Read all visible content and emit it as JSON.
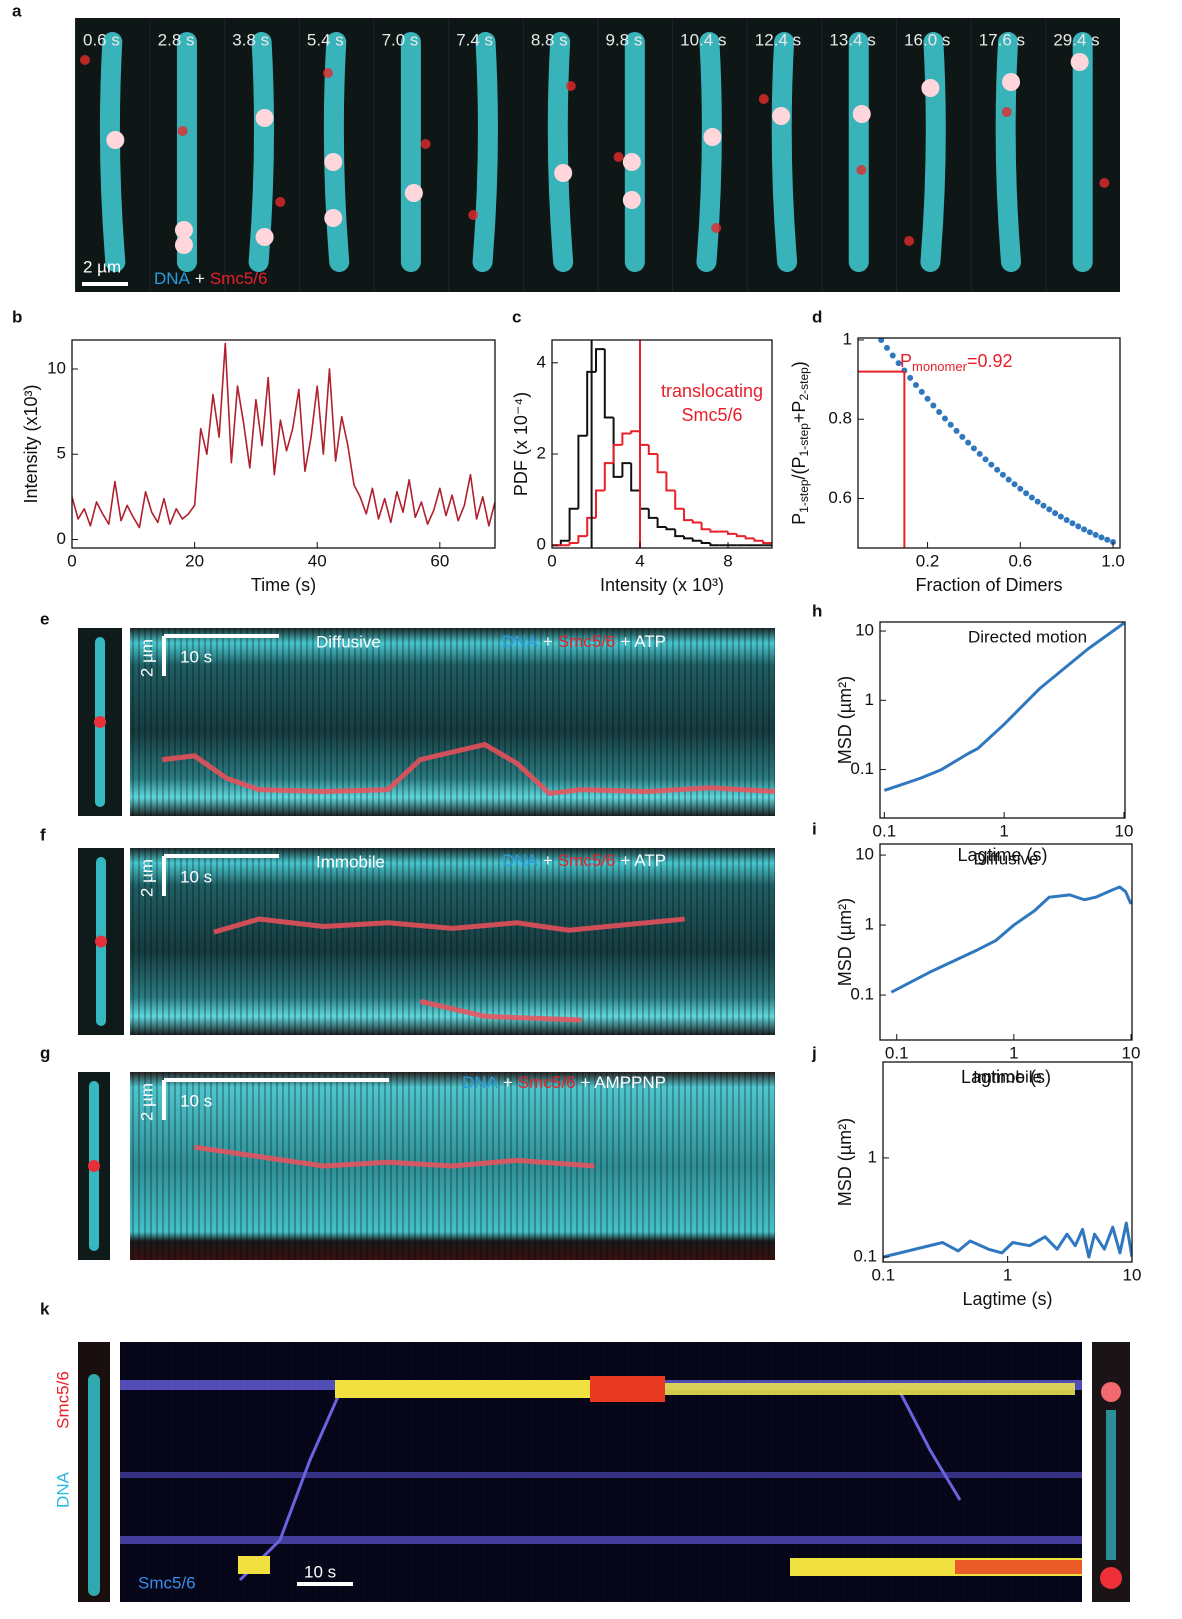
{
  "panels": [
    "a",
    "b",
    "c",
    "d",
    "e",
    "f",
    "g",
    "h",
    "i",
    "j",
    "k"
  ],
  "image_a": {
    "times": [
      "0.6 s",
      "2.8 s",
      "3.8 s",
      "5.4 s",
      "7.0 s",
      "7.4 s",
      "8.8 s",
      "9.8 s",
      "10.4 s",
      "12.4 s",
      "13.4 s",
      "16.0 s",
      "17.6 s",
      "29.4 s"
    ],
    "scale_bar": "2 µm",
    "label": [
      "DNA",
      "+",
      "Smc5/6"
    ]
  },
  "kymo_e": {
    "scale_y": "2 µm",
    "scale_x": "10 s",
    "title": "Diffusive",
    "label": [
      "DNA",
      "+",
      "Smc5/6",
      "+ ATP"
    ]
  },
  "kymo_f": {
    "scale_y": "2 µm",
    "scale_x": "10 s",
    "title": "Immobile",
    "label": [
      "DNA",
      "+",
      "Smc5/6",
      "+ ATP"
    ]
  },
  "kymo_g": {
    "scale_y": "2 µm",
    "scale_x": "10 s",
    "label": [
      "DNA",
      "+",
      "Smc5/6",
      "+ AMPPNP"
    ]
  },
  "kymo_k": {
    "side_labels": [
      "Smc5/6",
      "DNA"
    ],
    "channel": "Smc5/6",
    "scale_x": "10 s"
  },
  "chart_data": [
    {
      "type": "line",
      "xlabel": "Time (s)",
      "ylabel": "Intensity (x10³)",
      "x": [
        0,
        1,
        2,
        3,
        4,
        5,
        6,
        7,
        8,
        9,
        10,
        11,
        12,
        13,
        14,
        15,
        16,
        17,
        18,
        19,
        20,
        21,
        22,
        23,
        24,
        25,
        26,
        27,
        28,
        29,
        30,
        31,
        32,
        33,
        34,
        35,
        36,
        37,
        38,
        39,
        40,
        41,
        42,
        43,
        44,
        45,
        46,
        47,
        48,
        49,
        50,
        51,
        52,
        53,
        54,
        55,
        56,
        57,
        58,
        59,
        60,
        61,
        62,
        63,
        64,
        65,
        66,
        67,
        68,
        69
      ],
      "series": [
        {
          "color": "#b0202e",
          "values": [
            2.5,
            1.2,
            1.8,
            0.8,
            2.2,
            1.5,
            0.9,
            3.4,
            1.1,
            2.0,
            1.3,
            0.7,
            2.8,
            1.6,
            1.0,
            2.4,
            0.9,
            1.8,
            1.2,
            1.5,
            2.0,
            6.5,
            5.0,
            8.5,
            6.0,
            11.5,
            4.5,
            9.0,
            6.8,
            4.2,
            8.2,
            5.5,
            9.5,
            3.8,
            7.0,
            5.2,
            6.5,
            8.8,
            4.0,
            6.0,
            9.0,
            5.0,
            10.0,
            4.6,
            7.2,
            5.5,
            3.2,
            2.5,
            1.5,
            3.0,
            1.2,
            2.4,
            1.0,
            2.8,
            1.6,
            3.5,
            1.3,
            2.2,
            0.9,
            1.7,
            3.0,
            1.4,
            2.6,
            1.1,
            2.0,
            3.8,
            1.2,
            2.5,
            0.8,
            2.2
          ]
        }
      ],
      "xlim": [
        0,
        69
      ],
      "ylim": [
        -0.5,
        11.7
      ],
      "xticks": [
        0,
        20,
        40,
        60
      ],
      "yticks": [
        0,
        5,
        10
      ]
    },
    {
      "type": "histogram",
      "xlabel": "Intensity (x 10³)",
      "ylabel": "PDF (x 10⁻⁴)",
      "bins": [
        0,
        0.4,
        0.8,
        1.2,
        1.6,
        2.0,
        2.4,
        2.8,
        3.2,
        3.6,
        4.0,
        4.4,
        4.8,
        5.2,
        5.6,
        6.0,
        6.4,
        6.8,
        7.2,
        7.6,
        8.0,
        8.4,
        8.8,
        9.2,
        9.6,
        10.0
      ],
      "series": [
        {
          "color": "#111111",
          "values": [
            0,
            0.1,
            0.8,
            2.4,
            3.8,
            4.3,
            2.8,
            1.5,
            1.8,
            1.2,
            0.8,
            0.6,
            0.4,
            0.35,
            0.2,
            0.15,
            0.1,
            0.05,
            0,
            0,
            0,
            0,
            0,
            0,
            0
          ]
        },
        {
          "color": "#e8202a",
          "values": [
            0,
            0,
            0.05,
            0.2,
            0.6,
            1.2,
            1.8,
            2.2,
            2.45,
            2.5,
            2.2,
            2.0,
            1.6,
            1.2,
            0.8,
            0.55,
            0.5,
            0.35,
            0.3,
            0.3,
            0.25,
            0.2,
            0.15,
            0.1,
            0.05
          ]
        }
      ],
      "vlines": [
        {
          "value": 1.8,
          "color": "#111111"
        },
        {
          "value": 4,
          "color": "#e8202a"
        }
      ],
      "annotation": [
        "translocating",
        "Smc5/6"
      ],
      "annotation_color": "#e8202a",
      "xlim": [
        0,
        10
      ],
      "ylim": [
        -0.06,
        4.5
      ],
      "xticks": [
        0,
        4,
        8
      ],
      "yticks": [
        0,
        2,
        4
      ]
    },
    {
      "type": "scatter",
      "xlabel": "Fraction of Dimers",
      "ylabel_parts": [
        {
          "text": "P"
        },
        {
          "text": "1-step",
          "sub": true
        },
        {
          "text": "/(P"
        },
        {
          "text": "1-step",
          "sub": true
        },
        {
          "text": "+P"
        },
        {
          "text": "2-step",
          "sub": true
        },
        {
          "text": ")"
        }
      ],
      "annotation_parts": [
        {
          "text": "P"
        },
        {
          "text": "monomer",
          "sub": true
        },
        {
          "text": "=0.92"
        }
      ],
      "annotation_color": "#e8202a",
      "marker": {
        "x": 0.1,
        "y": 0.92,
        "color": "#e8202a"
      },
      "color": "#2f78c0",
      "x": [
        0,
        0.025,
        0.05,
        0.075,
        0.1,
        0.125,
        0.15,
        0.175,
        0.2,
        0.225,
        0.25,
        0.275,
        0.3,
        0.325,
        0.35,
        0.375,
        0.4,
        0.425,
        0.45,
        0.475,
        0.5,
        0.525,
        0.55,
        0.575,
        0.6,
        0.625,
        0.65,
        0.675,
        0.7,
        0.725,
        0.75,
        0.775,
        0.8,
        0.825,
        0.85,
        0.875,
        0.9,
        0.925,
        0.95,
        0.975,
        1.0
      ],
      "values": [
        1,
        0.9802,
        0.9607,
        0.9416,
        0.9229,
        0.9045,
        0.8865,
        0.8689,
        0.8516,
        0.8347,
        0.8181,
        0.8019,
        0.7861,
        0.7706,
        0.7555,
        0.7408,
        0.7264,
        0.7124,
        0.6987,
        0.6854,
        0.6725,
        0.6599,
        0.6477,
        0.6359,
        0.6244,
        0.6133,
        0.6025,
        0.5921,
        0.5821,
        0.5724,
        0.5631,
        0.5542,
        0.5456,
        0.5374,
        0.5295,
        0.522,
        0.5149,
        0.5081,
        0.5017,
        0.4957,
        0.49
      ],
      "xlim": [
        -0.1,
        1.03
      ],
      "ylim": [
        0.475,
        1.005
      ],
      "xticks": [
        0.2,
        0.6,
        {
          "value": 1,
          "label": "1.0"
        }
      ],
      "yticks": [
        1,
        0.8,
        0.6
      ]
    },
    {
      "type": "line",
      "title": "Directed motion",
      "xlabel": "Lagtime (s)",
      "ylabel": "MSD (µm²)",
      "log": true,
      "x": [
        0.1,
        0.2,
        0.3,
        0.5,
        0.6,
        1,
        2,
        5,
        10
      ],
      "series": [
        {
          "color": "#2f78c0",
          "values": [
            0.05,
            0.075,
            0.1,
            0.17,
            0.2,
            0.45,
            1.5,
            5.5,
            13
          ]
        }
      ],
      "xlim": [
        0.092,
        10.2
      ],
      "ylim": [
        0.02,
        13.5
      ],
      "xticks": [
        0.1,
        1,
        10
      ],
      "yticks": [
        0.1,
        1,
        10
      ]
    },
    {
      "type": "line",
      "title": "Diffusive",
      "xlabel": "Lagtime (s)",
      "ylabel": "MSD (µm²)",
      "log": true,
      "x": [
        0.09,
        0.2,
        0.5,
        0.7,
        1,
        1.5,
        2,
        3,
        4,
        5,
        7,
        8,
        9,
        10
      ],
      "series": [
        {
          "color": "#2f78c0",
          "values": [
            0.11,
            0.22,
            0.45,
            0.6,
            1,
            1.6,
            2.5,
            2.7,
            2.3,
            2.5,
            3.2,
            3.5,
            3,
            2
          ]
        }
      ],
      "xlim": [
        0.072,
        10.2
      ],
      "ylim": [
        0.0228,
        14.4
      ],
      "xticks": [
        0.1,
        1,
        10
      ],
      "yticks": [
        0.1,
        1,
        10
      ]
    },
    {
      "type": "line",
      "title": "Immobile",
      "xlabel": "Lagtime (s)",
      "ylabel": "MSD (µm²)",
      "log": true,
      "x": [
        0.1,
        0.3,
        0.4,
        0.5,
        0.7,
        0.9,
        1.1,
        1.5,
        2,
        2.5,
        3,
        3.5,
        4,
        4.5,
        5,
        6,
        7,
        8,
        9,
        10
      ],
      "series": [
        {
          "color": "#2f78c0",
          "values": [
            0.1,
            0.14,
            0.115,
            0.145,
            0.12,
            0.11,
            0.14,
            0.13,
            0.16,
            0.12,
            0.17,
            0.13,
            0.19,
            0.1,
            0.17,
            0.12,
            0.2,
            0.11,
            0.22,
            0.1
          ]
        }
      ],
      "xlim": [
        0.0995,
        10
      ],
      "ylim": [
        0.089,
        9.3
      ],
      "xticks": [
        0.1,
        1,
        10
      ],
      "yticks": [
        0.1,
        1
      ]
    }
  ]
}
